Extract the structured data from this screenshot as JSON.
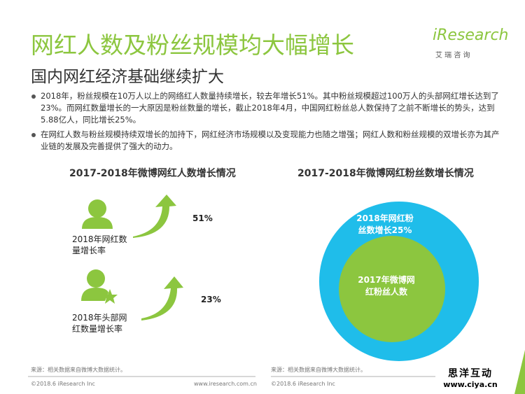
{
  "header": {
    "title": "网红人数及粉丝规模均大幅增长",
    "subtitle": "国内网红经济基础继续扩大",
    "logo": "iResearch",
    "logo_sub": "艾 瑞 咨 询"
  },
  "bullets": [
    "2018年，粉丝规模在10万人以上的网络红人数量持续增长，较去年增长51%。其中粉丝规模超过100万人的头部网红增长达到了23%。而网红数量增长的一大原因是粉丝数量的增长，截止2018年4月，中国网红粉丝总人数保持了之前不断增长的势头，达到5.88亿人，同比增长25%。",
    "在网红人数与粉丝规模持续双增长的加持下，网红经济市场规模以及变现能力也随之增强；网红人数和粉丝规模的双增长亦为其产业链的发展及完善提供了强大的动力。"
  ],
  "left_panel": {
    "title": "2017-2018年微博网红人数增长情况",
    "items": [
      {
        "label": "2018年网红数量增长率",
        "value": "51%"
      },
      {
        "label": "2018年头部网红数量增长率",
        "value": "23%"
      }
    ],
    "source": "来源：相关数据来自微博大数据统计。",
    "copyright": "©2018.6 iResearch Inc",
    "url": "www.iresearch.com.cn"
  },
  "right_panel": {
    "title": "2017-2018年微博网红粉丝数增长情况",
    "outer_label": "2018年网红粉丝数增长25%",
    "inner_label": "2017年微博网红粉丝人数",
    "source": "来源：相关数据来自微博大数据统计。",
    "copyright": "©2018.6 iResearch Inc"
  },
  "watermark": {
    "title": "思洋互动",
    "url": "www.ciya.cn"
  }
}
